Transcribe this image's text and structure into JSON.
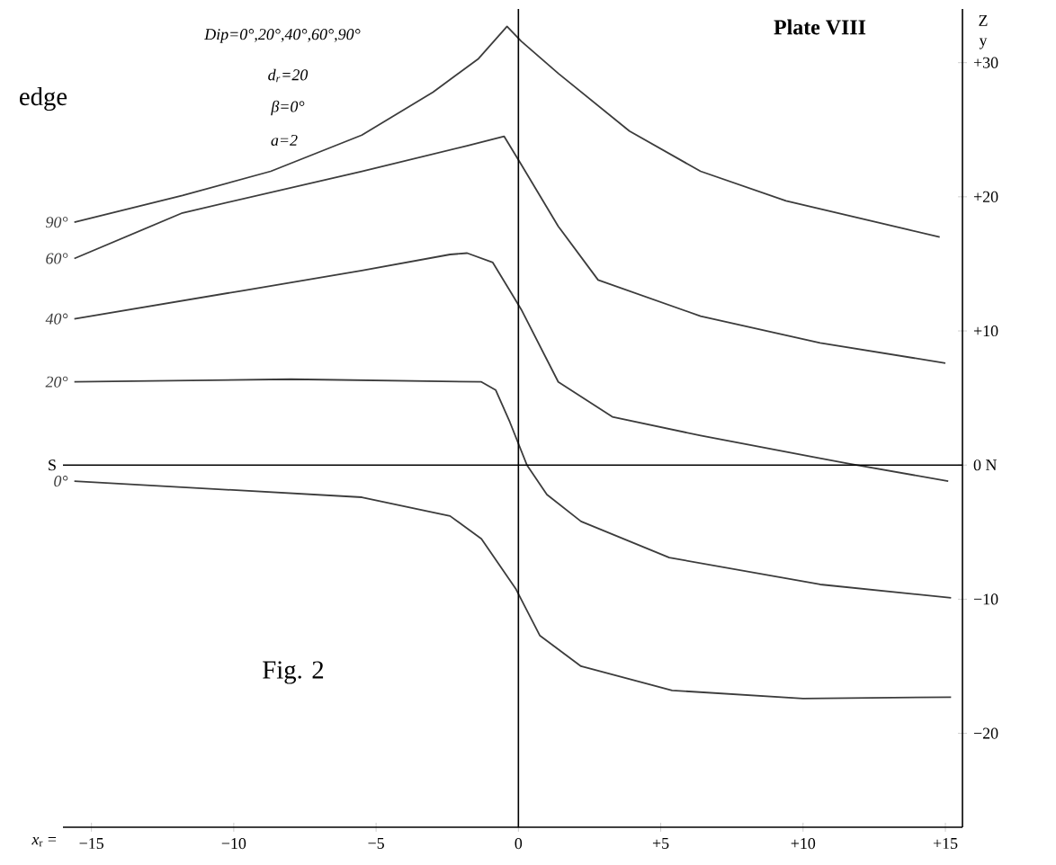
{
  "chart_data": {
    "type": "line",
    "title": "Plate VIII",
    "xlabel": "*x*$_{r}$ =",
    "ylabel": "Z y",
    "annotations": [
      "edge",
      "Dip=0°,20°,40°,60°,90°",
      "d$_{r}$=20",
      "β=0°",
      "a=2",
      "Fig. 2"
    ],
    "xlim": [
      -16,
      15.6
    ],
    "ylim": [
      -27,
      34
    ],
    "xticks": [
      {
        "value": -15,
        "label": "−15"
      },
      {
        "value": -10,
        "label": "−10"
      },
      {
        "value": -5,
        "label": "−5"
      },
      0,
      {
        "value": 5,
        "label": "+5"
      },
      {
        "value": 10,
        "label": "+10"
      },
      {
        "value": 15,
        "label": "+15"
      }
    ],
    "yticks": [
      {
        "value": -20,
        "label": "−20"
      },
      {
        "value": -10,
        "label": "−10"
      },
      {
        "value": 0,
        "label": "0 N"
      },
      {
        "value": 10,
        "label": "+10"
      },
      {
        "value": 20,
        "label": "+20"
      },
      {
        "value": 30,
        "label": "+30"
      }
    ],
    "ref_lines": [
      {
        "axis": "y",
        "value": 0,
        "label": "S"
      },
      {
        "axis": "x",
        "value": 0
      }
    ],
    "grid": false,
    "marker": "none",
    "line_style": "solid",
    "series": [
      {
        "name": "90°",
        "color": "#3c3c3c",
        "x": [
          -15.6,
          -11.8,
          -8.7,
          -5.5,
          -3.0,
          -1.4,
          -0.4,
          0.1,
          1.4,
          3.9,
          6.4,
          9.4,
          14.8
        ],
        "values": [
          18.1,
          20.1,
          21.9,
          24.6,
          27.8,
          30.3,
          32.7,
          31.6,
          29.2,
          24.9,
          21.9,
          19.7,
          17.0
        ]
      },
      {
        "name": "60°",
        "color": "#3c3c3c",
        "x": [
          -15.6,
          -11.8,
          -5.5,
          -1.8,
          -0.5,
          0.1,
          1.4,
          2.8,
          6.4,
          10.6,
          15.0
        ],
        "values": [
          15.4,
          18.8,
          21.9,
          23.8,
          24.5,
          22.4,
          17.8,
          13.8,
          11.1,
          9.1,
          7.6
        ]
      },
      {
        "name": "40°",
        "color": "#3c3c3c",
        "x": [
          -15.6,
          -9.7,
          -5.5,
          -2.4,
          -1.8,
          -0.9,
          -0.3,
          0.1,
          1.4,
          3.3,
          6.4,
          11.6,
          15.1
        ],
        "values": [
          10.9,
          13.0,
          14.5,
          15.7,
          15.8,
          15.1,
          13.0,
          11.6,
          6.2,
          3.6,
          2.2,
          0.1,
          -1.2
        ]
      },
      {
        "name": "20°",
        "color": "#3c3c3c",
        "x": [
          -15.6,
          -8,
          -1.3,
          -0.8,
          -0.3,
          0.3,
          1.0,
          2.2,
          5.3,
          10.6,
          15.2
        ],
        "values": [
          6.2,
          6.4,
          6.2,
          5.6,
          3.2,
          0.0,
          -2.2,
          -4.2,
          -6.9,
          -8.9,
          -9.9
        ]
      },
      {
        "name": "0°",
        "color": "#3c3c3c",
        "x": [
          -15.6,
          -5.5,
          -2.4,
          -1.3,
          -0.1,
          0.75,
          2.2,
          5.4,
          10.0,
          15.2
        ],
        "values": [
          -1.2,
          -2.4,
          -3.8,
          -5.5,
          -9.2,
          -12.7,
          -15.0,
          -16.8,
          -17.4,
          -17.3
        ]
      }
    ]
  }
}
